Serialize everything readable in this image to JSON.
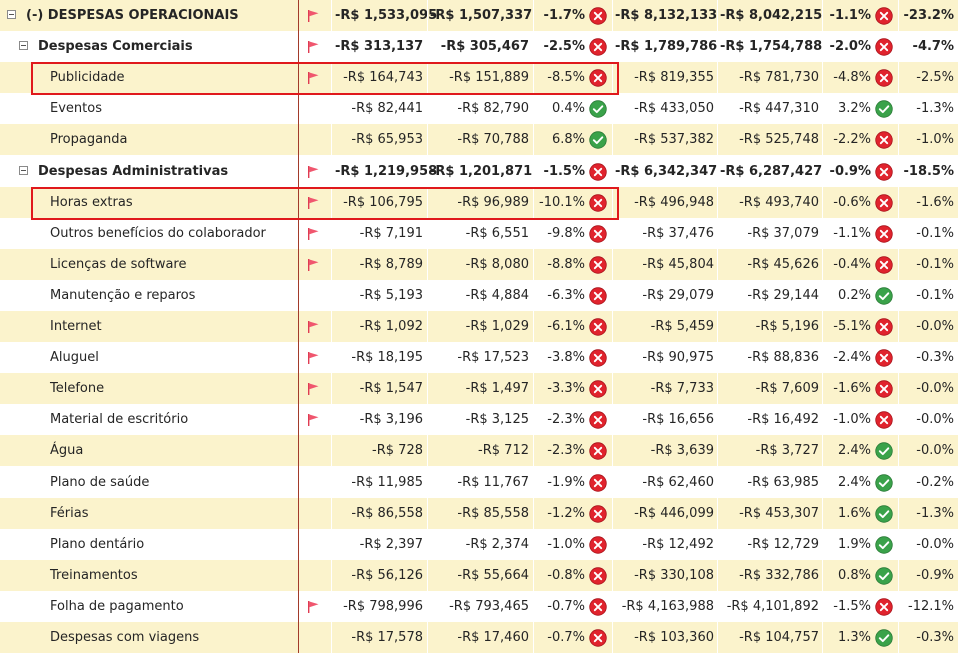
{
  "colors": {
    "band": "#fbf3cc",
    "flag": "#f0566e",
    "bad": "#e0232d",
    "good": "#3aa24a",
    "divider": "#a23a2a",
    "highlight": "#e0191c"
  },
  "icons": {
    "expand_collapse": "minus-box-icon",
    "flag": "red-flag-icon",
    "negative_status": "x-circle-icon",
    "positive_status": "check-circle-icon"
  },
  "rows": [
    {
      "level": 0,
      "toggle": true,
      "bold": true,
      "label": "(-) DESPESAS OPERACIONAIS",
      "flag": true,
      "v1": "-R$ 1,533,095",
      "v2": "-R$ 1,507,337",
      "p1": "-1.7%",
      "s1": "bad",
      "v3": "-R$ 8,132,133",
      "v4": "-R$ 8,042,215",
      "p2": "-1.1%",
      "s2": "bad",
      "p3": "-23.2%",
      "band": true
    },
    {
      "level": 1,
      "toggle": true,
      "bold": true,
      "label": "Despesas Comerciais",
      "flag": true,
      "v1": "-R$ 313,137",
      "v2": "-R$ 305,467",
      "p1": "-2.5%",
      "s1": "bad",
      "v3": "-R$ 1,789,786",
      "v4": "-R$ 1,754,788",
      "p2": "-2.0%",
      "s2": "bad",
      "p3": "-4.7%",
      "band": false
    },
    {
      "level": 2,
      "toggle": false,
      "bold": false,
      "label": "Publicidade",
      "flag": true,
      "v1": "-R$ 164,743",
      "v2": "-R$ 151,889",
      "p1": "-8.5%",
      "s1": "bad",
      "v3": "-R$ 819,355",
      "v4": "-R$ 781,730",
      "p2": "-4.8%",
      "s2": "bad",
      "p3": "-2.5%",
      "band": true
    },
    {
      "level": 2,
      "toggle": false,
      "bold": false,
      "label": "Eventos",
      "flag": false,
      "v1": "-R$ 82,441",
      "v2": "-R$ 82,790",
      "p1": "0.4%",
      "s1": "good",
      "v3": "-R$ 433,050",
      "v4": "-R$ 447,310",
      "p2": "3.2%",
      "s2": "good",
      "p3": "-1.3%",
      "band": false
    },
    {
      "level": 2,
      "toggle": false,
      "bold": false,
      "label": "Propaganda",
      "flag": false,
      "v1": "-R$ 65,953",
      "v2": "-R$ 70,788",
      "p1": "6.8%",
      "s1": "good",
      "v3": "-R$ 537,382",
      "v4": "-R$ 525,748",
      "p2": "-2.2%",
      "s2": "bad",
      "p3": "-1.0%",
      "band": true
    },
    {
      "level": 1,
      "toggle": true,
      "bold": true,
      "label": "Despesas Administrativas",
      "flag": true,
      "v1": "-R$ 1,219,958",
      "v2": "-R$ 1,201,871",
      "p1": "-1.5%",
      "s1": "bad",
      "v3": "-R$ 6,342,347",
      "v4": "-R$ 6,287,427",
      "p2": "-0.9%",
      "s2": "bad",
      "p3": "-18.5%",
      "band": false
    },
    {
      "level": 2,
      "toggle": false,
      "bold": false,
      "label": "Horas extras",
      "flag": true,
      "v1": "-R$ 106,795",
      "v2": "-R$ 96,989",
      "p1": "-10.1%",
      "s1": "bad",
      "v3": "-R$ 496,948",
      "v4": "-R$ 493,740",
      "p2": "-0.6%",
      "s2": "bad",
      "p3": "-1.6%",
      "band": true
    },
    {
      "level": 2,
      "toggle": false,
      "bold": false,
      "label": "Outros benefícios do colaborador",
      "flag": true,
      "v1": "-R$ 7,191",
      "v2": "-R$ 6,551",
      "p1": "-9.8%",
      "s1": "bad",
      "v3": "-R$ 37,476",
      "v4": "-R$ 37,079",
      "p2": "-1.1%",
      "s2": "bad",
      "p3": "-0.1%",
      "band": false
    },
    {
      "level": 2,
      "toggle": false,
      "bold": false,
      "label": "Licenças de software",
      "flag": true,
      "v1": "-R$ 8,789",
      "v2": "-R$ 8,080",
      "p1": "-8.8%",
      "s1": "bad",
      "v3": "-R$ 45,804",
      "v4": "-R$ 45,626",
      "p2": "-0.4%",
      "s2": "bad",
      "p3": "-0.1%",
      "band": true
    },
    {
      "level": 2,
      "toggle": false,
      "bold": false,
      "label": "Manutenção e reparos",
      "flag": false,
      "v1": "-R$ 5,193",
      "v2": "-R$ 4,884",
      "p1": "-6.3%",
      "s1": "bad",
      "v3": "-R$ 29,079",
      "v4": "-R$ 29,144",
      "p2": "0.2%",
      "s2": "good",
      "p3": "-0.1%",
      "band": false
    },
    {
      "level": 2,
      "toggle": false,
      "bold": false,
      "label": "Internet",
      "flag": true,
      "v1": "-R$ 1,092",
      "v2": "-R$ 1,029",
      "p1": "-6.1%",
      "s1": "bad",
      "v3": "-R$ 5,459",
      "v4": "-R$ 5,196",
      "p2": "-5.1%",
      "s2": "bad",
      "p3": "-0.0%",
      "band": true
    },
    {
      "level": 2,
      "toggle": false,
      "bold": false,
      "label": "Aluguel",
      "flag": true,
      "v1": "-R$ 18,195",
      "v2": "-R$ 17,523",
      "p1": "-3.8%",
      "s1": "bad",
      "v3": "-R$ 90,975",
      "v4": "-R$ 88,836",
      "p2": "-2.4%",
      "s2": "bad",
      "p3": "-0.3%",
      "band": false
    },
    {
      "level": 2,
      "toggle": false,
      "bold": false,
      "label": "Telefone",
      "flag": true,
      "v1": "-R$ 1,547",
      "v2": "-R$ 1,497",
      "p1": "-3.3%",
      "s1": "bad",
      "v3": "-R$ 7,733",
      "v4": "-R$ 7,609",
      "p2": "-1.6%",
      "s2": "bad",
      "p3": "-0.0%",
      "band": true
    },
    {
      "level": 2,
      "toggle": false,
      "bold": false,
      "label": "Material de escritório",
      "flag": true,
      "v1": "-R$ 3,196",
      "v2": "-R$ 3,125",
      "p1": "-2.3%",
      "s1": "bad",
      "v3": "-R$ 16,656",
      "v4": "-R$ 16,492",
      "p2": "-1.0%",
      "s2": "bad",
      "p3": "-0.0%",
      "band": false
    },
    {
      "level": 2,
      "toggle": false,
      "bold": false,
      "label": "Água",
      "flag": false,
      "v1": "-R$ 728",
      "v2": "-R$ 712",
      "p1": "-2.3%",
      "s1": "bad",
      "v3": "-R$ 3,639",
      "v4": "-R$ 3,727",
      "p2": "2.4%",
      "s2": "good",
      "p3": "-0.0%",
      "band": true
    },
    {
      "level": 2,
      "toggle": false,
      "bold": false,
      "label": "Plano de saúde",
      "flag": false,
      "v1": "-R$ 11,985",
      "v2": "-R$ 11,767",
      "p1": "-1.9%",
      "s1": "bad",
      "v3": "-R$ 62,460",
      "v4": "-R$ 63,985",
      "p2": "2.4%",
      "s2": "good",
      "p3": "-0.2%",
      "band": false
    },
    {
      "level": 2,
      "toggle": false,
      "bold": false,
      "label": "Férias",
      "flag": false,
      "v1": "-R$ 86,558",
      "v2": "-R$ 85,558",
      "p1": "-1.2%",
      "s1": "bad",
      "v3": "-R$ 446,099",
      "v4": "-R$ 453,307",
      "p2": "1.6%",
      "s2": "good",
      "p3": "-1.3%",
      "band": true
    },
    {
      "level": 2,
      "toggle": false,
      "bold": false,
      "label": "Plano dentário",
      "flag": false,
      "v1": "-R$ 2,397",
      "v2": "-R$ 2,374",
      "p1": "-1.0%",
      "s1": "bad",
      "v3": "-R$ 12,492",
      "v4": "-R$ 12,729",
      "p2": "1.9%",
      "s2": "good",
      "p3": "-0.0%",
      "band": false
    },
    {
      "level": 2,
      "toggle": false,
      "bold": false,
      "label": "Treinamentos",
      "flag": false,
      "v1": "-R$ 56,126",
      "v2": "-R$ 55,664",
      "p1": "-0.8%",
      "s1": "bad",
      "v3": "-R$ 330,108",
      "v4": "-R$ 332,786",
      "p2": "0.8%",
      "s2": "good",
      "p3": "-0.9%",
      "band": true
    },
    {
      "level": 2,
      "toggle": false,
      "bold": false,
      "label": "Folha de pagamento",
      "flag": true,
      "v1": "-R$ 798,996",
      "v2": "-R$ 793,465",
      "p1": "-0.7%",
      "s1": "bad",
      "v3": "-R$ 4,163,988",
      "v4": "-R$ 4,101,892",
      "p2": "-1.5%",
      "s2": "bad",
      "p3": "-12.1%",
      "band": false
    },
    {
      "level": 2,
      "toggle": false,
      "bold": false,
      "label": "Despesas com viagens",
      "flag": false,
      "v1": "-R$ 17,578",
      "v2": "-R$ 17,460",
      "p1": "-0.7%",
      "s1": "bad",
      "v3": "-R$ 103,360",
      "v4": "-R$ 104,757",
      "p2": "1.3%",
      "s2": "good",
      "p3": "-0.3%",
      "band": true
    }
  ]
}
